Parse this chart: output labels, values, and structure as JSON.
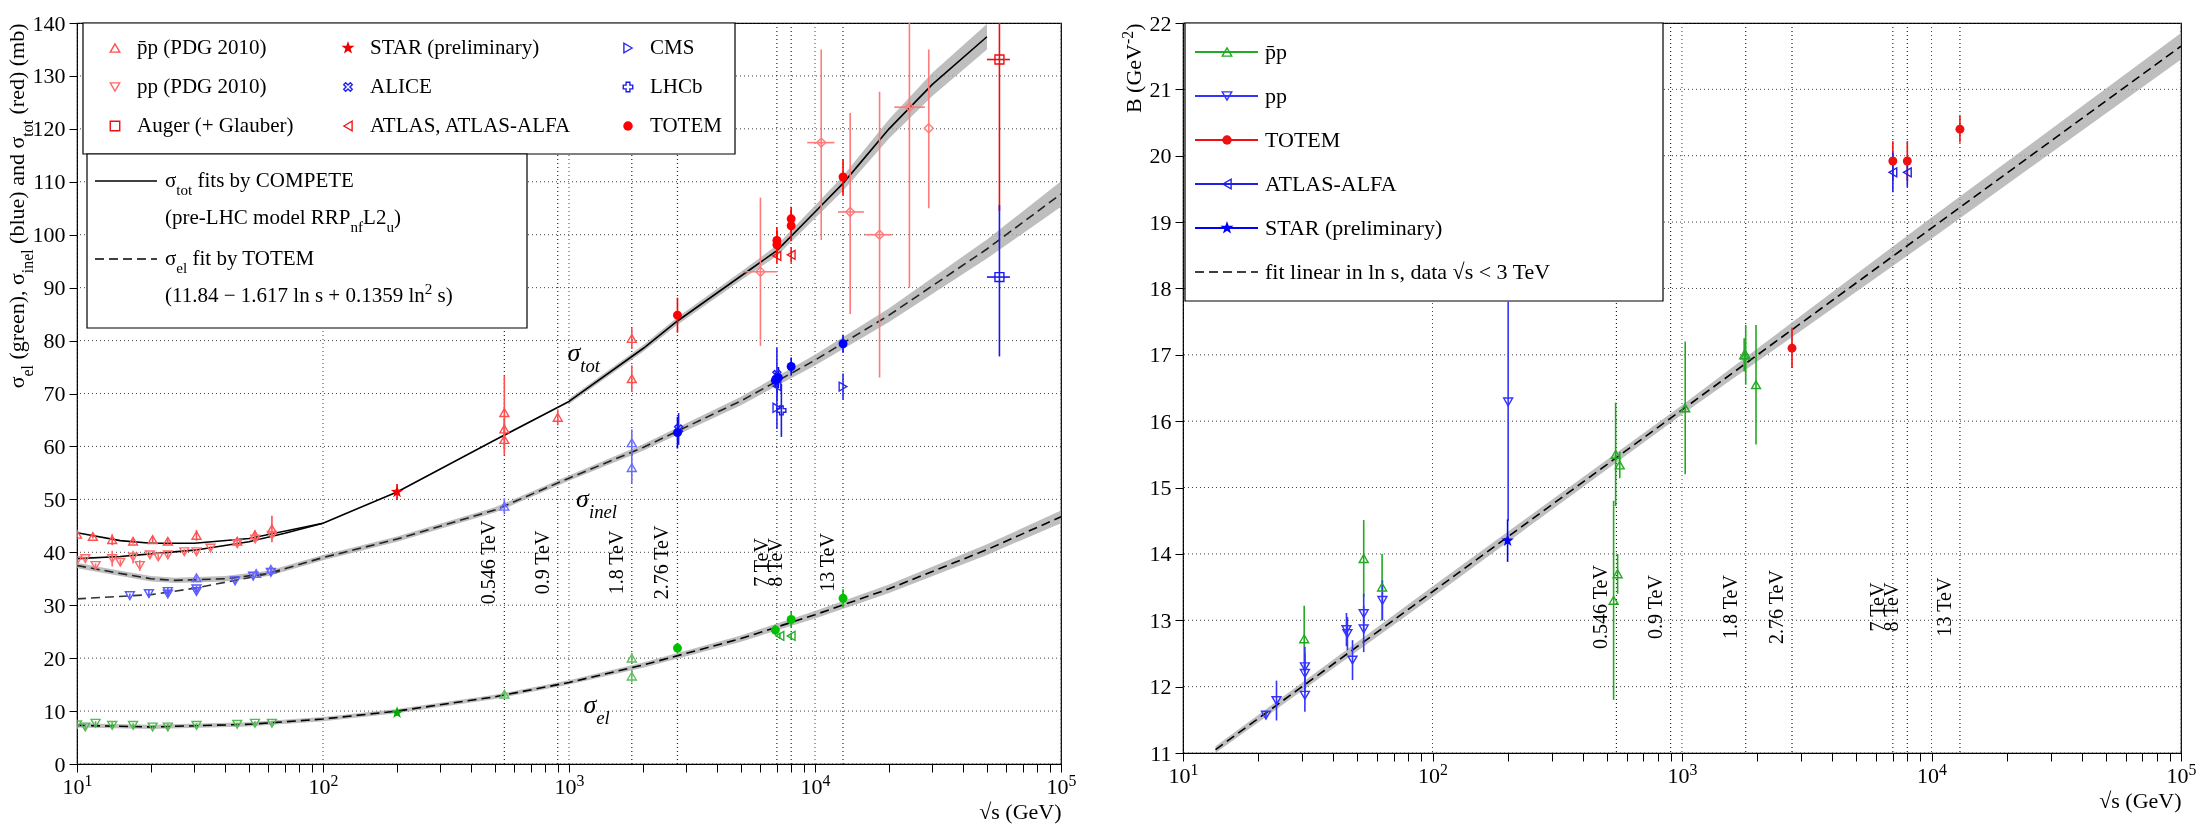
{
  "chart_data": [
    {
      "type": "scatter",
      "xlabel": "√s   (GeV)",
      "ylabel": "σ$_{el}$ (green), σ$_{inel}$ (blue) and σ$_{tot}$ (red)    (mb)",
      "log": "x",
      "xlim": [
        10,
        100000
      ],
      "ylim": [
        0,
        140
      ],
      "xticks": [
        {
          "value": 10,
          "label": "10$^{1}$"
        },
        {
          "value": 20,
          "label": null
        },
        {
          "value": 30,
          "label": null
        },
        {
          "value": 40,
          "label": null
        },
        {
          "value": 50,
          "label": null
        },
        {
          "value": 60,
          "label": null
        },
        {
          "value": 70,
          "label": null
        },
        {
          "value": 80,
          "label": null
        },
        {
          "value": 90,
          "label": null
        },
        {
          "value": 100,
          "label": "10$^{2}$"
        },
        {
          "value": 200,
          "label": null
        },
        {
          "value": 300,
          "label": null
        },
        {
          "value": 400,
          "label": null
        },
        {
          "value": 500,
          "label": null
        },
        {
          "value": 600,
          "label": null
        },
        {
          "value": 700,
          "label": null
        },
        {
          "value": 800,
          "label": null
        },
        {
          "value": 900,
          "label": null
        },
        {
          "value": 1000,
          "label": "10$^{3}$"
        },
        {
          "value": 2000,
          "label": null
        },
        {
          "value": 3000,
          "label": null
        },
        {
          "value": 4000,
          "label": null
        },
        {
          "value": 5000,
          "label": null
        },
        {
          "value": 6000,
          "label": null
        },
        {
          "value": 7000,
          "label": null
        },
        {
          "value": 8000,
          "label": null
        },
        {
          "value": 9000,
          "label": null
        },
        {
          "value": 10000,
          "label": "10$^{4}$"
        },
        {
          "value": 20000,
          "label": null
        },
        {
          "value": 30000,
          "label": null
        },
        {
          "value": 40000,
          "label": null
        },
        {
          "value": 50000,
          "label": null
        },
        {
          "value": 60000,
          "label": null
        },
        {
          "value": 70000,
          "label": null
        },
        {
          "value": 80000,
          "label": null
        },
        {
          "value": 90000,
          "label": null
        },
        {
          "value": 100000,
          "label": "10$^{5}$"
        }
      ],
      "yticks": [
        0,
        10,
        20,
        30,
        40,
        50,
        60,
        70,
        80,
        90,
        100,
        110,
        120,
        130,
        140
      ],
      "grid": true,
      "legend": "top left",
      "ref_lines": [
        {
          "axis": "x",
          "value": 546,
          "label": "0.546 TeV"
        },
        {
          "axis": "x",
          "value": 900,
          "label": "0.9 TeV"
        },
        {
          "axis": "x",
          "value": 1800,
          "label": "1.8 TeV"
        },
        {
          "axis": "x",
          "value": 2760,
          "label": "2.76 TeV"
        },
        {
          "axis": "x",
          "value": 7000,
          "label": "7 TeV"
        },
        {
          "axis": "x",
          "value": 8000,
          "label": "8 TeV"
        },
        {
          "axis": "x",
          "value": 13000,
          "label": "13 TeV"
        }
      ],
      "annotations": [
        "σ$_{tot}$",
        "σ$_{inel}$",
        "σ$_{el}$"
      ],
      "series": [
        {
          "name": "p̄p (PDG 2010)",
          "marker": "triangle-up",
          "color": "#ff5050",
          "x": [
            10,
            11.6,
            13.9,
            16.9,
            20.3,
            23.4,
            30.6,
            44.8,
            52.9,
            62,
            546,
            546,
            546,
            900,
            1800,
            1800
          ],
          "values": [
            43.4,
            43.0,
            42.4,
            42.1,
            42.4,
            42.1,
            43.2,
            42.1,
            43.3,
            44.4,
            66.4,
            63.3,
            61.3,
            65.5,
            80.4,
            72.8
          ],
          "errors": [
            0.5,
            0.4,
            1,
            0.5,
            0.5,
            0.5,
            1,
            0.8,
            0.8,
            2.5,
            7,
            2,
            3,
            1.5,
            2,
            2.5
          ]
        },
        {
          "name": "pp (PDG 2010)",
          "marker": "triangle-down",
          "color": "#ff6a6a",
          "x": [
            10,
            10.8,
            11.9,
            13.9,
            15,
            16.9,
            18,
            19.8,
            21.4,
            23.4,
            27.3,
            30.6,
            34.9,
            44.8,
            53,
            62
          ],
          "values": [
            38.4,
            38.8,
            37.5,
            38.8,
            38.1,
            39.1,
            37.5,
            39.5,
            39.1,
            39.5,
            40.1,
            40.1,
            40.8,
            41.6,
            42.5,
            43.2
          ],
          "errors": [
            0.5,
            0.4,
            0.4,
            1.5,
            0.5,
            1.2,
            1,
            0.5,
            0.5,
            0.5,
            0.5,
            0.5,
            0.4,
            0.5,
            0.5,
            0.6
          ]
        },
        {
          "name": "Auger (+ Glauber)",
          "marker": "square",
          "color": "#e81010",
          "x": [
            56200
          ],
          "values": [
            133.1
          ],
          "errors": [
            [
              104.5,
              140
            ]
          ],
          "xerrors": [
            [
              50000,
              62000
            ]
          ]
        },
        {
          "name": "STAR (preliminary)",
          "marker": "star",
          "color": "#ee0000",
          "x": [
            200
          ],
          "values": [
            51.4
          ],
          "errors": [
            1.5
          ]
        },
        {
          "name": "ALICE",
          "marker": "x",
          "color": "#2020f0",
          "x": [
            2790,
            7000
          ],
          "values": [
            63.3,
            73.6
          ],
          "errors": [
            3,
            5
          ]
        },
        {
          "name": "ATLAS, ATLAS-ALFA",
          "marker": "triangle-left",
          "color": "#f01818",
          "x": [
            7000,
            8000
          ],
          "values": [
            96.0,
            96.2
          ],
          "errors": [
            1.5,
            1.5
          ]
        },
        {
          "name": "CMS",
          "marker": "triangle-right",
          "color": "#2a2aee",
          "x": [
            7000,
            13000
          ],
          "values": [
            67.3,
            71.3
          ],
          "errors": [
            4,
            2.5
          ]
        },
        {
          "name": "LHCb",
          "marker": "cross",
          "color": "#1c1ce8",
          "x": [
            7300
          ],
          "values": [
            66.8
          ],
          "errors": [
            5
          ]
        },
        {
          "name": "TOTEM",
          "marker": "circle",
          "color": "#ff0000",
          "x": [
            2760,
            7000,
            7000,
            8000,
            8000,
            13000
          ],
          "values": [
            84.8,
            98.1,
            98.9,
            101.7,
            103.0,
            110.9
          ],
          "errors": [
            3.3,
            2.5,
            2.5,
            2.9,
            2.3,
            3.4
          ]
        },
        {
          "marker": "triangle-down",
          "color": "#5a5aff",
          "x": [
            16.4,
            19.6,
            23.4,
            23.4,
            30.6,
            30.6,
            43.9,
            52,
            61.4
          ],
          "values": [
            31.8,
            32.2,
            32.6,
            32.1,
            33.1,
            32.6,
            34.6,
            35.5,
            36.2
          ],
          "errors": [
            0.4,
            0.8,
            0.8,
            0.5,
            0.6,
            0.5,
            0.5,
            0.6,
            0.6
          ]
        },
        {
          "marker": "triangle-up",
          "color": "#6c6cff",
          "x": [
            30.6,
            53.5,
            61.4,
            546,
            1800,
            1800
          ],
          "values": [
            35.2,
            36.0,
            36.8,
            48.7,
            60.7,
            56.0
          ],
          "errors": [
            0.5,
            0.5,
            0.5,
            1.5,
            2.5,
            3
          ]
        },
        {
          "marker": "triangle-left",
          "color": "#2424ea",
          "x": [
            7000
          ],
          "values": [
            71.4
          ],
          "errors": [
            1.5
          ]
        },
        {
          "marker": "circle",
          "color": "#0000ff",
          "x": [
            2760,
            6900,
            7100,
            8000,
            13000
          ],
          "values": [
            62.6,
            72.5,
            73.0,
            75.1,
            79.4
          ],
          "errors": [
            3,
            1.5,
            2,
            1.7,
            1.7
          ]
        },
        {
          "marker": "square",
          "color": "#1818f0",
          "x": [
            56200
          ],
          "values": [
            92.0
          ],
          "errors": [
            [
              77,
              105.6
            ]
          ],
          "xerrors": [
            [
              50000,
              62000
            ]
          ]
        },
        {
          "marker": "triangle-down",
          "color": "#50bb50",
          "x": [
            10,
            10.8,
            11.9,
            13.9,
            16.9,
            20.3,
            23.4,
            30.6,
            44.8,
            52.9,
            62
          ],
          "values": [
            7.4,
            7.0,
            7.7,
            7.3,
            7.3,
            7.0,
            7.0,
            7.3,
            7.5,
            7.7,
            7.7
          ],
          "errors": [
            0.5,
            0.4,
            0.4,
            0.6,
            0.4,
            0.3,
            0.6,
            0.4,
            0.3,
            0.4,
            0.4
          ]
        },
        {
          "marker": "triangle-up",
          "color": "#60c060",
          "x": [
            546,
            1800,
            1800
          ],
          "values": [
            13.2,
            20.0,
            16.6
          ],
          "errors": [
            0.6,
            1,
            1.2
          ]
        },
        {
          "marker": "star",
          "color": "#00aa00",
          "x": [
            200
          ],
          "values": [
            9.7
          ],
          "errors": [
            0.6
          ]
        },
        {
          "marker": "triangle-left",
          "color": "#28b028",
          "x": [
            7200,
            8000
          ],
          "values": [
            24.2,
            24.2
          ],
          "errors": [
            0.6,
            0.6
          ]
        },
        {
          "marker": "circle",
          "color": "#00c000",
          "x": [
            2760,
            6900,
            8000,
            13000
          ],
          "values": [
            21.9,
            25.3,
            27.3,
            31.3
          ],
          "errors": [
            1,
            1,
            1.4,
            1.7
          ]
        },
        {
          "marker": "diamond",
          "color": "#ff7a7a",
          "x": [
            6000,
            10600,
            13900,
            18300,
            24200,
            29000
          ],
          "values": [
            93.0,
            117.4,
            104.3,
            100.0,
            124.1,
            120.1
          ],
          "errors": [
            [
              79,
              107
            ],
            [
              99,
              135
            ],
            [
              85,
              123
            ],
            [
              73,
              127
            ],
            [
              90,
              140
            ],
            [
              105,
              135
            ]
          ],
          "xerrors": [
            [
              5100,
              7000
            ],
            [
              9300,
              12000
            ],
            [
              12400,
              15800
            ],
            [
              16000,
              20500
            ],
            [
              21000,
              28000
            ],
            null
          ]
        },
        {
          "name": "σ$_{tot}$ fits by COMPETE\n(pre-LHC model RRP$_{nf}$L2$_{u}$)",
          "type": "line",
          "line_style": "solid",
          "color": "#000000",
          "x": [
            10,
            15,
            20,
            30,
            50,
            100,
            200,
            500,
            1000,
            2000,
            2760,
            5000,
            7000,
            10000,
            13000,
            20000,
            30000,
            50000
          ],
          "values": [
            43.7,
            42.2,
            41.7,
            41.7,
            42.6,
            45.5,
            51.4,
            61.2,
            68.5,
            78.5,
            83.7,
            92.2,
            97.0,
            104.3,
            109.7,
            120.0,
            128.4,
            137.4
          ],
          "lower": [
            null,
            null,
            null,
            null,
            null,
            null,
            null,
            null,
            68.0,
            77.9,
            83.0,
            91.4,
            96.0,
            103.1,
            108.3,
            118.2,
            126.2,
            135.0
          ],
          "upper": [
            null,
            null,
            null,
            null,
            null,
            null,
            null,
            null,
            69.0,
            79.1,
            84.4,
            93.0,
            98.0,
            105.5,
            111.1,
            121.8,
            130.6,
            139.8
          ]
        },
        {
          "type": "line",
          "line_style": "solid",
          "color": "#000000",
          "x": [
            10,
            15,
            20,
            30,
            50,
            70,
            100
          ],
          "values": [
            38.8,
            39.2,
            39.7,
            40.4,
            42.0,
            43.6,
            45.5
          ]
        },
        {
          "name": "σ$_{el}$ fit by TOTEM\n(11.84 − 1.617 ln s + 0.1359 ln$^{2}$ s)",
          "type": "line",
          "line_style": "dashed",
          "color": "#000000",
          "x": [
            10,
            20,
            50,
            100,
            200,
            500,
            1000,
            2000,
            5000,
            10000,
            20000,
            50000,
            100000
          ],
          "values": [
            7.3,
            7.0,
            7.5,
            8.5,
            10.0,
            12.7,
            15.4,
            18.7,
            23.7,
            28.2,
            33.1,
            40.5,
            46.7
          ],
          "lower": [
            6.9,
            6.6,
            7.1,
            8.1,
            9.6,
            12.3,
            15.0,
            18.2,
            23.1,
            27.5,
            32.3,
            39.5,
            45.5
          ],
          "upper": [
            7.7,
            7.4,
            7.9,
            8.9,
            10.4,
            13.1,
            15.8,
            19.2,
            24.3,
            28.9,
            33.9,
            41.5,
            47.9
          ]
        },
        {
          "type": "line",
          "line_style": "dashed",
          "color": "#222222",
          "x": [
            10,
            15,
            20,
            25,
            40,
            60,
            100,
            200,
            500,
            1000,
            2000,
            5000,
            10000,
            20000,
            50000,
            100000
          ],
          "values": [
            37.5,
            36.0,
            35.0,
            34.7,
            35.0,
            36.0,
            39.0,
            42.5,
            48.0,
            54.0,
            59.8,
            68.6,
            76.3,
            84.8,
            97.3,
            107.7
          ],
          "lower": [
            37.0,
            35.5,
            34.5,
            34.2,
            34.5,
            35.5,
            38.5,
            42.0,
            47.5,
            53.5,
            59.2,
            67.8,
            75.3,
            83.5,
            95.5,
            105.3
          ],
          "upper": [
            38.0,
            36.5,
            35.5,
            35.2,
            35.5,
            36.5,
            39.5,
            43.0,
            48.5,
            54.5,
            60.4,
            69.4,
            77.3,
            86.1,
            99.1,
            110.1
          ]
        },
        {
          "type": "line",
          "line_style": "dashed",
          "color": "#333333",
          "x": [
            10,
            20,
            30,
            50,
            70
          ],
          "values": [
            31.2,
            32.0,
            33.2,
            35.2,
            36.6
          ]
        }
      ]
    },
    {
      "type": "scatter",
      "xlabel": "√s   (GeV)",
      "ylabel": "B   (GeV$^{-2}$)",
      "log": "x",
      "xlim": [
        10,
        100000
      ],
      "ylim": [
        11,
        22
      ],
      "xticks": [
        {
          "value": 10,
          "label": "10$^{1}$"
        },
        {
          "value": 20,
          "label": null
        },
        {
          "value": 30,
          "label": null
        },
        {
          "value": 40,
          "label": null
        },
        {
          "value": 50,
          "label": null
        },
        {
          "value": 60,
          "label": null
        },
        {
          "value": 70,
          "label": null
        },
        {
          "value": 80,
          "label": null
        },
        {
          "value": 90,
          "label": null
        },
        {
          "value": 100,
          "label": "10$^{2}$"
        },
        {
          "value": 200,
          "label": null
        },
        {
          "value": 300,
          "label": null
        },
        {
          "value": 400,
          "label": null
        },
        {
          "value": 500,
          "label": null
        },
        {
          "value": 600,
          "label": null
        },
        {
          "value": 700,
          "label": null
        },
        {
          "value": 800,
          "label": null
        },
        {
          "value": 900,
          "label": null
        },
        {
          "value": 1000,
          "label": "10$^{3}$"
        },
        {
          "value": 2000,
          "label": null
        },
        {
          "value": 3000,
          "label": null
        },
        {
          "value": 4000,
          "label": null
        },
        {
          "value": 5000,
          "label": null
        },
        {
          "value": 6000,
          "label": null
        },
        {
          "value": 7000,
          "label": null
        },
        {
          "value": 8000,
          "label": null
        },
        {
          "value": 9000,
          "label": null
        },
        {
          "value": 10000,
          "label": "10$^{4}$"
        },
        {
          "value": 20000,
          "label": null
        },
        {
          "value": 30000,
          "label": null
        },
        {
          "value": 40000,
          "label": null
        },
        {
          "value": 50000,
          "label": null
        },
        {
          "value": 60000,
          "label": null
        },
        {
          "value": 70000,
          "label": null
        },
        {
          "value": 80000,
          "label": null
        },
        {
          "value": 90000,
          "label": null
        },
        {
          "value": 100000,
          "label": "10$^{5}$"
        }
      ],
      "yticks": [
        11,
        12,
        13,
        14,
        15,
        16,
        17,
        18,
        19,
        20,
        21,
        22
      ],
      "grid": true,
      "legend": "top left",
      "ref_lines": [
        {
          "axis": "x",
          "value": 546,
          "label": "0.546 TeV"
        },
        {
          "axis": "x",
          "value": 900,
          "label": "0.9 TeV"
        },
        {
          "axis": "x",
          "value": 1800,
          "label": "1.8 TeV"
        },
        {
          "axis": "x",
          "value": 2760,
          "label": "2.76 TeV"
        },
        {
          "axis": "x",
          "value": 7000,
          "label": "7 TeV"
        },
        {
          "axis": "x",
          "value": 8000,
          "label": "8 TeV"
        },
        {
          "axis": "x",
          "value": 13000,
          "label": "13 TeV"
        }
      ],
      "series": [
        {
          "name": "p̄p",
          "marker": "triangle-up",
          "color": "#22aa22",
          "x": [
            30.6,
            53,
            62.8,
            532,
            542,
            552,
            563,
            1030,
            1775,
            1800,
            1980
          ],
          "values": [
            12.72,
            13.93,
            13.5,
            13.3,
            15.5,
            13.7,
            15.34,
            16.2,
            17.0,
            17.0,
            16.55
          ],
          "errors": [
            0.5,
            0.58,
            0.5,
            1.5,
            0.78,
            0.3,
            0.2,
            1.0,
            0.25,
            0.45,
            0.9
          ]
        },
        {
          "name": "pp",
          "marker": "triangle-down",
          "color": "#3333ff",
          "x": [
            21.5,
            23.7,
            30.8,
            30.8,
            30.8,
            45.2,
            45.6,
            47.8,
            53,
            53,
            63,
            201
          ],
          "values": [
            11.57,
            11.79,
            12.3,
            12.2,
            11.87,
            12.86,
            12.8,
            12.4,
            13.1,
            12.87,
            13.3,
            16.29
          ],
          "errors": [
            0.05,
            0.3,
            0.3,
            0.3,
            0.25,
            0.25,
            0.25,
            0.3,
            0.3,
            0.35,
            0.3,
            [
              14.5,
              17.8
            ]
          ]
        },
        {
          "name": "TOTEM",
          "marker": "circle",
          "color": "#ee1111",
          "x": [
            2760,
            7000,
            8000,
            13000
          ],
          "values": [
            17.1,
            19.92,
            19.92,
            20.4
          ],
          "errors": [
            0.3,
            0.3,
            0.3,
            0.2
          ]
        },
        {
          "name": "ATLAS-ALFA",
          "marker": "triangle-left",
          "color": "#2020e8",
          "x": [
            7000,
            8000
          ],
          "values": [
            19.75,
            19.75
          ],
          "errors": [
            0.3,
            0.22
          ]
        },
        {
          "name": "STAR (preliminary)",
          "marker": "star",
          "color": "#0000ff",
          "x": [
            200
          ],
          "values": [
            14.2
          ],
          "errors": [
            0.32
          ]
        },
        {
          "name": "fit linear in ln s, data √s < 3 TeV",
          "type": "line",
          "line_style": "dashed",
          "color": "#000000",
          "x": [
            13.5,
            100,
            1000,
            10000,
            100000
          ],
          "values": [
            11.05,
            13.43,
            16.17,
            18.91,
            21.65
          ],
          "lower": [
            11.0,
            13.35,
            16.1,
            18.75,
            21.45
          ],
          "upper": [
            11.1,
            13.51,
            16.24,
            19.07,
            21.85
          ]
        }
      ]
    }
  ]
}
